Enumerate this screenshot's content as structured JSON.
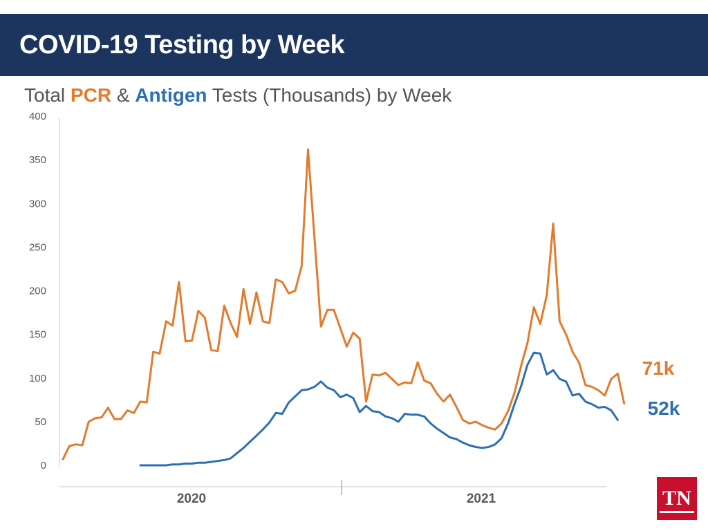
{
  "header": {
    "title": "COVID-19 Testing by Week"
  },
  "subtitle": {
    "prefix": "Total ",
    "pcr": "PCR",
    "amp": " & ",
    "antigen": "Antigen",
    "suffix": " Tests (Thousands) by Week"
  },
  "colors": {
    "pcr": "#e27b2e",
    "antigen": "#2e6fb4",
    "header_bg": "#1c355e",
    "logo_red": "#c8102e"
  },
  "logo": {
    "text": "TN"
  },
  "chart_data": {
    "type": "line",
    "title": "",
    "xlabel": "",
    "ylabel": "",
    "ylim": [
      0,
      400
    ],
    "yticks": [
      0,
      50,
      100,
      150,
      200,
      250,
      300,
      350,
      400
    ],
    "x_year_labels": [
      "2020",
      "2021"
    ],
    "grid": false,
    "series": [
      {
        "name": "PCR",
        "color": "#e27b2e",
        "end_label": "71k",
        "values": [
          7,
          22,
          24,
          23,
          50,
          54,
          55,
          66,
          53,
          53,
          63,
          60,
          73,
          72,
          130,
          128,
          165,
          160,
          210,
          142,
          143,
          177,
          169,
          132,
          131,
          183,
          163,
          147,
          202,
          162,
          198,
          165,
          163,
          213,
          210,
          197,
          200,
          228,
          362,
          260,
          159,
          178,
          178,
          157,
          136,
          152,
          145,
          73,
          104,
          103,
          106,
          99,
          92,
          95,
          94,
          118,
          97,
          94,
          82,
          73,
          81,
          67,
          52,
          48,
          50,
          46,
          43,
          41,
          48,
          62,
          83,
          113,
          140,
          181,
          162,
          195,
          277,
          165,
          150,
          130,
          118,
          92,
          90,
          86,
          80,
          99,
          105,
          71
        ]
      },
      {
        "name": "Antigen",
        "color": "#2e6fb4",
        "end_label": "52k",
        "start_index": 12,
        "values": [
          0,
          0,
          0,
          0,
          0,
          1,
          1,
          2,
          2,
          3,
          3,
          4,
          5,
          6,
          8,
          14,
          20,
          27,
          34,
          41,
          49,
          60,
          59,
          72,
          79,
          86,
          87,
          90,
          96,
          89,
          86,
          78,
          81,
          77,
          61,
          68,
          62,
          61,
          56,
          54,
          50,
          59,
          58,
          58,
          56,
          48,
          42,
          37,
          32,
          30,
          26,
          23,
          21,
          20,
          21,
          24,
          31,
          48,
          70,
          90,
          115,
          129,
          128,
          104,
          109,
          99,
          96,
          80,
          82,
          73,
          70,
          66,
          67,
          63,
          52
        ]
      }
    ]
  }
}
